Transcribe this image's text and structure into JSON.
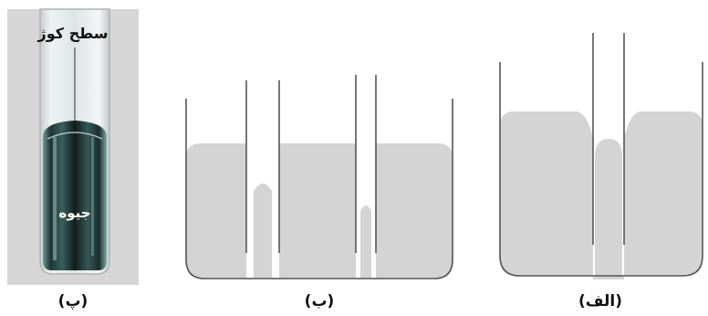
{
  "figure": {
    "photo_panel": {
      "caption": "(پ)",
      "label_meniscus": "سطح کوژ",
      "label_liquid": "جیوه"
    },
    "middle_panel": {
      "caption": "(ب)"
    },
    "right_panel": {
      "caption": "(الف)"
    }
  },
  "colors": {
    "liquid_fill": "#d4d4d4",
    "outline": "#555555",
    "photo_bg": "#d8d8d8",
    "mercury": "#3f6b6a"
  }
}
